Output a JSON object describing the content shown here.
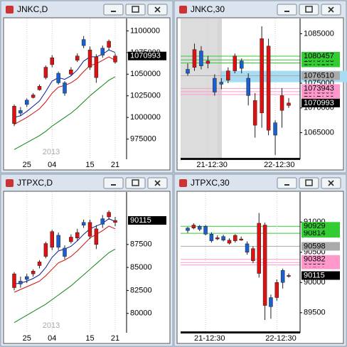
{
  "chart_data": [
    {
      "type": "candlestick",
      "title": "JNKC,D",
      "annotation": "2013",
      "up_color": "#dd1111",
      "down_color": "#1a5fd0",
      "ylim": [
        955000,
        1111000
      ],
      "yticks": [
        975000,
        1000000,
        1025000,
        1050000,
        1075000,
        1100000
      ],
      "categories": [
        null,
        null,
        "25",
        null,
        null,
        null,
        "04",
        null,
        null,
        null,
        null,
        null,
        "15",
        null,
        null,
        null,
        "21"
      ],
      "open": [
        993000,
        1008000,
        1020000,
        1023000,
        1032000,
        1046000,
        1061000,
        1051000,
        1040000,
        1050000,
        1066000,
        1090000,
        1058000,
        1046000,
        1080000,
        1081000,
        1064000
      ],
      "high": [
        1015000,
        1012000,
        1022000,
        1028000,
        1038000,
        1060000,
        1072000,
        1053000,
        1042000,
        1058000,
        1074000,
        1094000,
        1082000,
        1073000,
        1083000,
        1090000,
        1074000
      ],
      "low": [
        990000,
        1002000,
        1012000,
        1022000,
        1031000,
        1044000,
        1058000,
        1038000,
        1025000,
        1048000,
        1064000,
        1080000,
        1055000,
        1040000,
        1069000,
        1078000,
        1062000
      ],
      "close": [
        1013000,
        1005000,
        1015000,
        1026000,
        1036000,
        1058000,
        1069000,
        1040000,
        1028000,
        1055000,
        1071000,
        1083000,
        1078000,
        1070000,
        1072000,
        1088000,
        1070993
      ],
      "lines": [
        {
          "color": "#0a1aa0",
          "values": [
            1000000,
            1002000,
            1007000,
            1013000,
            1019000,
            1030000,
            1042000,
            1046000,
            1044000,
            1048000,
            1055000,
            1065000,
            1070000,
            1070000,
            1073000,
            1078000,
            1075000
          ]
        },
        {
          "color": "#d01010",
          "values": [
            992000,
            996000,
            1000000,
            1005000,
            1010000,
            1018000,
            1028000,
            1035000,
            1037000,
            1040000,
            1045000,
            1053000,
            1060000,
            1062000,
            1066000,
            1070000,
            1066000
          ]
        },
        {
          "color": "#118811",
          "values": [
            963000,
            967000,
            971000,
            975000,
            979000,
            984000,
            990000,
            995000,
            1000000,
            1005000,
            1011000,
            1018000,
            1025000,
            1031000,
            1037000,
            1043000,
            1047000
          ]
        }
      ],
      "levels": []
    },
    {
      "type": "candlestick",
      "title": "JNKC,30",
      "up_color": "#dd1111",
      "down_color": "#1a5fd0",
      "ylim": [
        1060200,
        1087500
      ],
      "yticks": [
        1065000,
        1070000,
        1075000,
        1085000
      ],
      "categories": [
        null,
        null,
        null,
        "21-12:30",
        null,
        null,
        null,
        null,
        null,
        null,
        null,
        null,
        null,
        "22-12:30",
        null,
        null
      ],
      "open": [
        1077800,
        1078200,
        1081500,
        1079000,
        1076000,
        1075200,
        1075600,
        1077500,
        1079500,
        1076000,
        1066500,
        1069000,
        1065500,
        1067000,
        1069500,
        1070500
      ],
      "high": [
        1079000,
        1083000,
        1082500,
        1080500,
        1076800,
        1076000,
        1078200,
        1081000,
        1080000,
        1077000,
        1073000,
        1086500,
        1084000,
        1067500,
        1074000,
        1072000
      ],
      "low": [
        1076500,
        1077500,
        1077800,
        1078000,
        1072500,
        1073800,
        1075000,
        1077000,
        1077000,
        1070500,
        1064000,
        1066000,
        1064500,
        1060500,
        1066000,
        1070000
      ],
      "close": [
        1077000,
        1081800,
        1078500,
        1079500,
        1073200,
        1074800,
        1077500,
        1080500,
        1078000,
        1072500,
        1071500,
        1084000,
        1082500,
        1064500,
        1072500,
        1070993
      ],
      "lines": [],
      "band": {
        "range": [
          1075200,
          1077500
        ],
        "color": "#a8dcf2"
      },
      "levels": [
        {
          "value": 1079100,
          "color": "#33cc33"
        },
        {
          "value": 1079700,
          "color": "#33cc33"
        },
        {
          "value": 1080457,
          "color": "#33cc33"
        },
        {
          "value": 1076510,
          "color": "#aaaaaa"
        },
        {
          "value": 1072700,
          "color": "#ff99cc"
        },
        {
          "value": 1073300,
          "color": "#ff99cc"
        },
        {
          "value": 1073943,
          "color": "#ff99cc"
        }
      ]
    },
    {
      "type": "candlestick",
      "title": "JTPXC,D",
      "annotation": "2013",
      "up_color": "#dd1111",
      "down_color": "#1a5fd0",
      "ylim": [
        78200,
        92900
      ],
      "yticks": [
        80000,
        82500,
        85000,
        87500
      ],
      "categories": [
        null,
        null,
        "25",
        null,
        null,
        null,
        "04",
        null,
        null,
        null,
        null,
        null,
        "15",
        null,
        null,
        null,
        "21"
      ],
      "open": [
        82800,
        83500,
        84000,
        84300,
        85200,
        86200,
        87200,
        88500,
        87100,
        87800,
        88200,
        89900,
        88400,
        87500,
        90300,
        90500,
        89900
      ],
      "high": [
        84500,
        84000,
        84300,
        84800,
        85800,
        87800,
        89100,
        88800,
        87400,
        88600,
        89200,
        90200,
        90200,
        89600,
        90700,
        91200,
        90500
      ],
      "low": [
        82500,
        82800,
        83300,
        84000,
        84900,
        86000,
        86900,
        86900,
        85900,
        87600,
        87900,
        89300,
        88100,
        87000,
        89300,
        90200,
        89500
      ],
      "close": [
        84300,
        83200,
        83700,
        84600,
        85600,
        87600,
        88900,
        87200,
        86200,
        88300,
        88800,
        89600,
        89900,
        89200,
        89700,
        91000,
        90115
      ],
      "lines": [
        {
          "color": "#0a1aa0",
          "values": [
            83200,
            83300,
            83500,
            83800,
            84200,
            85000,
            86100,
            86800,
            87000,
            87300,
            87900,
            88600,
            89200,
            89500,
            89800,
            90300,
            90000
          ]
        },
        {
          "color": "#d01010",
          "values": [
            82300,
            82600,
            82900,
            83200,
            83500,
            84100,
            84800,
            85500,
            85800,
            86200,
            86800,
            87500,
            88200,
            88600,
            89000,
            89500,
            89200
          ]
        },
        {
          "color": "#118811",
          "values": [
            79000,
            79400,
            79800,
            80200,
            80600,
            81000,
            81500,
            82000,
            82500,
            83000,
            83600,
            84200,
            84800,
            85400,
            86000,
            86600,
            87000
          ]
        }
      ],
      "levels": []
    },
    {
      "type": "candlestick",
      "title": "JTPXC,30",
      "up_color": "#dd1111",
      "down_color": "#1a5fd0",
      "ylim": [
        89215,
        91450
      ],
      "yticks": [
        89500,
        90000,
        90500,
        91000
      ],
      "categories": [
        null,
        null,
        null,
        "21-12:30",
        null,
        null,
        null,
        null,
        null,
        null,
        null,
        null,
        null,
        null,
        null,
        "22-12:30",
        null,
        null
      ],
      "open": [
        90900,
        90900,
        90930,
        90930,
        90800,
        90720,
        90760,
        90650,
        90690,
        90700,
        90640,
        90360,
        90150,
        89620,
        89750,
        89750,
        90200,
        90100
      ],
      "high": [
        90920,
        90980,
        90950,
        90950,
        90830,
        90780,
        90790,
        90730,
        90800,
        90760,
        90680,
        90600,
        91150,
        90990,
        89800,
        90050,
        90230,
        90150
      ],
      "low": [
        90820,
        90880,
        90850,
        90780,
        90660,
        90700,
        90680,
        90630,
        90660,
        90690,
        90460,
        90320,
        90080,
        89380,
        89400,
        89700,
        89900,
        90080
      ],
      "close": [
        90860,
        90950,
        90880,
        90800,
        90690,
        90740,
        90700,
        90700,
        90780,
        90720,
        90500,
        90560,
        90980,
        90950,
        89600,
        90000,
        90000,
        90115
      ],
      "lines": [],
      "levels": [
        {
          "value": 90814,
          "color": "#33cc33"
        },
        {
          "value": 90929,
          "color": "#33cc33"
        },
        {
          "value": 90598,
          "color": "#aaaaaa"
        },
        {
          "value": 90290,
          "color": "#ff99cc"
        },
        {
          "value": 90330,
          "color": "#ff99cc"
        },
        {
          "value": 90382,
          "color": "#ff99cc"
        }
      ]
    }
  ]
}
